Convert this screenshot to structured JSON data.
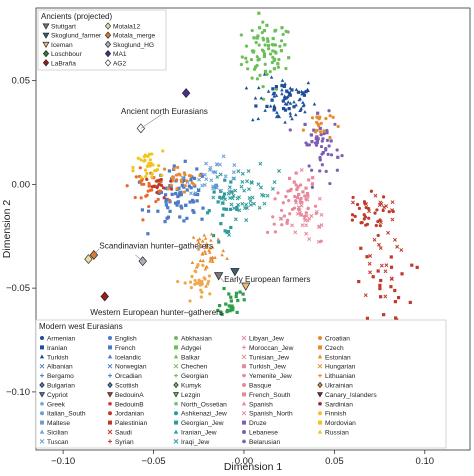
{
  "chart_data": {
    "type": "scatter",
    "xlabel": "Dimension 1",
    "ylabel": "Dimension 2",
    "xlim": [
      -0.115,
      0.125
    ],
    "ylim": [
      -0.128,
      0.085
    ],
    "xticks": [
      -0.1,
      -0.05,
      0.0,
      0.05,
      0.1
    ],
    "xtick_labels": [
      "−0.10",
      "−0.05",
      "0.00",
      "0.05",
      "0.10"
    ],
    "yticks": [
      -0.1,
      -0.05,
      0.0,
      0.05
    ],
    "ytick_labels": [
      "−0.10",
      "−0.05",
      "0.00",
      "0.05"
    ],
    "grid": false,
    "legend_ancient": {
      "title": "Ancients (projected)",
      "placement": "top-left",
      "entries": [
        {
          "name": "Stuttgart",
          "marker": "tri-down",
          "color": "#777777"
        },
        {
          "name": "Motala12",
          "marker": "diamond",
          "color": "#e8e0a0"
        },
        {
          "name": "Skoglund_farmer",
          "marker": "tri-down",
          "color": "#3a5f7a"
        },
        {
          "name": "Motala_merge",
          "marker": "diamond",
          "color": "#e07a30"
        },
        {
          "name": "Iceman",
          "marker": "tri-down",
          "color": "#e9c07a"
        },
        {
          "name": "Skoglund_HG",
          "marker": "diamond",
          "color": "#b0b0c0"
        },
        {
          "name": "Loschbour",
          "marker": "diamond",
          "color": "#2f7d3a"
        },
        {
          "name": "MA1",
          "marker": "diamond",
          "color": "#4a2f8a"
        },
        {
          "name": "LaBraña",
          "marker": "diamond",
          "color": "#9b1c1c"
        },
        {
          "name": "AG2",
          "marker": "diamond",
          "color": "#ffffff"
        }
      ]
    },
    "legend_modern": {
      "title": "Modern west Eurasians",
      "placement": "bottom-left",
      "columns": [
        [
          {
            "name": "Armenian",
            "marker": "circle",
            "color": "#1f4e9a"
          },
          {
            "name": "Iranian",
            "marker": "square",
            "color": "#1f4e9a"
          },
          {
            "name": "Turkish",
            "marker": "triangle",
            "color": "#1f4e9a"
          },
          {
            "name": "Albanian",
            "marker": "cross",
            "color": "#4a7bc4"
          },
          {
            "name": "Bergamo",
            "marker": "plus",
            "color": "#4a7bc4"
          },
          {
            "name": "Bulgarian",
            "marker": "diamond",
            "color": "#4a7bc4"
          },
          {
            "name": "Cypriot",
            "marker": "tri-down",
            "color": "#4a7bc4"
          },
          {
            "name": "Greek",
            "marker": "star",
            "color": "#6a9fd8"
          },
          {
            "name": "Italian_South",
            "marker": "circle",
            "color": "#6a9fd8"
          },
          {
            "name": "Maltese",
            "marker": "square",
            "color": "#6a9fd8"
          },
          {
            "name": "Sicilian",
            "marker": "triangle",
            "color": "#6a9fd8"
          },
          {
            "name": "Tuscan",
            "marker": "cross",
            "color": "#6a9fd8"
          }
        ],
        [
          {
            "name": "English",
            "marker": "circle",
            "color": "#4a7bc4"
          },
          {
            "name": "French",
            "marker": "square",
            "color": "#4a7bc4"
          },
          {
            "name": "Icelandic",
            "marker": "triangle",
            "color": "#4a7bc4"
          },
          {
            "name": "Norwegian",
            "marker": "cross",
            "color": "#4a7bc4"
          },
          {
            "name": "Orcadian",
            "marker": "plus",
            "color": "#4a7bc4"
          },
          {
            "name": "Scottish",
            "marker": "diamond",
            "color": "#4a7bc4"
          },
          {
            "name": "BedouinA",
            "marker": "tri-down",
            "color": "#c0392b"
          },
          {
            "name": "BedouinB",
            "marker": "star",
            "color": "#c0392b"
          },
          {
            "name": "Jordanian",
            "marker": "circle",
            "color": "#c0392b"
          },
          {
            "name": "Palestinian",
            "marker": "square",
            "color": "#c0392b"
          },
          {
            "name": "Saudi",
            "marker": "cross",
            "color": "#c0392b"
          },
          {
            "name": "Syrian",
            "marker": "plus",
            "color": "#c0392b"
          }
        ],
        [
          {
            "name": "Abkhasian",
            "marker": "circle",
            "color": "#6bbf59"
          },
          {
            "name": "Adygei",
            "marker": "square",
            "color": "#6bbf59"
          },
          {
            "name": "Balkar",
            "marker": "triangle",
            "color": "#6bbf59"
          },
          {
            "name": "Chechen",
            "marker": "cross",
            "color": "#6bbf59"
          },
          {
            "name": "Georgian",
            "marker": "plus",
            "color": "#6bbf59"
          },
          {
            "name": "Kumyk",
            "marker": "diamond",
            "color": "#6bbf59"
          },
          {
            "name": "Lezgin",
            "marker": "tri-down",
            "color": "#6bbf59"
          },
          {
            "name": "North_Ossetian",
            "marker": "star",
            "color": "#6bbf59"
          },
          {
            "name": "Ashkenazi_Jew",
            "marker": "circle",
            "color": "#2e9b9b"
          },
          {
            "name": "Georgian_Jew",
            "marker": "square",
            "color": "#2e9b9b"
          },
          {
            "name": "Iranian_Jew",
            "marker": "triangle",
            "color": "#2e9b9b"
          },
          {
            "name": "Iraqi_Jew",
            "marker": "cross",
            "color": "#2e9b9b"
          }
        ],
        [
          {
            "name": "Libyan_Jew",
            "marker": "cross",
            "color": "#e8889a"
          },
          {
            "name": "Moroccan_Jew",
            "marker": "plus",
            "color": "#e8889a"
          },
          {
            "name": "Tunisian_Jew",
            "marker": "cross",
            "color": "#e8889a"
          },
          {
            "name": "Turkish_Jew",
            "marker": "square",
            "color": "#e8889a"
          },
          {
            "name": "Yemenite_Jew",
            "marker": "star",
            "color": "#e8889a"
          },
          {
            "name": "Basque",
            "marker": "circle",
            "color": "#e8889a"
          },
          {
            "name": "French_South",
            "marker": "square",
            "color": "#e8889a"
          },
          {
            "name": "Spanish",
            "marker": "triangle",
            "color": "#e8889a"
          },
          {
            "name": "Spanish_North",
            "marker": "cross",
            "color": "#e8889a"
          },
          {
            "name": "Druze",
            "marker": "square",
            "color": "#7b5fb0"
          },
          {
            "name": "Lebanese",
            "marker": "circle",
            "color": "#7b5fb0"
          },
          {
            "name": "Belarusian",
            "marker": "star",
            "color": "#7b5fb0"
          }
        ],
        [
          {
            "name": "Croatian",
            "marker": "circle",
            "color": "#e88a2e"
          },
          {
            "name": "Czech",
            "marker": "square",
            "color": "#e88a2e"
          },
          {
            "name": "Estonian",
            "marker": "triangle",
            "color": "#e88a2e"
          },
          {
            "name": "Hungarian",
            "marker": "cross",
            "color": "#e88a2e"
          },
          {
            "name": "Lithuanian",
            "marker": "plus",
            "color": "#e88a2e"
          },
          {
            "name": "Ukrainian",
            "marker": "diamond",
            "color": "#e88a2e"
          },
          {
            "name": "Canary_Islanders",
            "marker": "tri-down",
            "color": "#9b1c1c"
          },
          {
            "name": "Sardinian",
            "marker": "star",
            "color": "#9b1c1c"
          },
          {
            "name": "Finnish",
            "marker": "circle",
            "color": "#f0c419"
          },
          {
            "name": "Mordovian",
            "marker": "square",
            "color": "#f0c419"
          },
          {
            "name": "Russian",
            "marker": "triangle",
            "color": "#f0c419"
          }
        ]
      ]
    },
    "annotations": [
      {
        "text": "Ancient north Eurasians",
        "x": -0.044,
        "y": 0.034
      },
      {
        "text": "Scandinavian hunter–gatherers",
        "x": -0.08,
        "y": -0.031
      },
      {
        "text": "Early European farmers",
        "x": -0.011,
        "y": -0.047
      },
      {
        "text": "Western European hunter–gatherers",
        "x": -0.085,
        "y": -0.063
      }
    ],
    "ancient_points": [
      {
        "name": "MA1",
        "x": -0.032,
        "y": 0.044,
        "marker": "diamond",
        "color": "#4a2f8a"
      },
      {
        "name": "AG2",
        "x": -0.057,
        "y": 0.027,
        "marker": "diamond",
        "color": "#ffffff"
      },
      {
        "name": "Motala_merge",
        "x": -0.083,
        "y": -0.034,
        "marker": "diamond",
        "color": "#e07a30"
      },
      {
        "name": "Motala12",
        "x": -0.086,
        "y": -0.036,
        "marker": "diamond",
        "color": "#e8e0a0"
      },
      {
        "name": "Skoglund_HG",
        "x": -0.056,
        "y": -0.037,
        "marker": "diamond",
        "color": "#b0b0c0"
      },
      {
        "name": "LaBraña",
        "x": -0.077,
        "y": -0.054,
        "marker": "diamond",
        "color": "#9b1c1c"
      },
      {
        "name": "Loschbour",
        "x": -0.097,
        "y": -0.069,
        "marker": "diamond",
        "color": "#2f7d3a"
      },
      {
        "name": "Skoglund_farmer",
        "x": -0.005,
        "y": -0.042,
        "marker": "tri-down",
        "color": "#3a5f7a"
      },
      {
        "name": "Stuttgart",
        "x": -0.014,
        "y": -0.044,
        "marker": "tri-down",
        "color": "#777777"
      },
      {
        "name": "Iceman",
        "x": 0.001,
        "y": -0.049,
        "marker": "tri-down",
        "color": "#e9c07a"
      }
    ],
    "clusters": [
      {
        "group": "Caucasus",
        "cx": 0.013,
        "cy": 0.062,
        "sx": 0.007,
        "sy": 0.008,
        "n": 55,
        "color": "#6bbf59",
        "marker": "circle"
      },
      {
        "group": "Caucasus2",
        "cx": 0.012,
        "cy": 0.065,
        "sx": 0.006,
        "sy": 0.007,
        "n": 25,
        "color": "#6bbf59",
        "marker": "square"
      },
      {
        "group": "Near East blue",
        "cx": 0.022,
        "cy": 0.04,
        "sx": 0.009,
        "sy": 0.006,
        "n": 55,
        "color": "#1f4e9a",
        "marker": "triangle"
      },
      {
        "group": "Near East blue sq",
        "cx": 0.024,
        "cy": 0.042,
        "sx": 0.008,
        "sy": 0.005,
        "n": 25,
        "color": "#1f4e9a",
        "marker": "square"
      },
      {
        "group": "Druze/Lebanese",
        "cx": 0.043,
        "cy": 0.017,
        "sx": 0.005,
        "sy": 0.008,
        "n": 35,
        "color": "#7b5fb0",
        "marker": "circle"
      },
      {
        "group": "Druze sq",
        "cx": 0.041,
        "cy": 0.023,
        "sx": 0.004,
        "sy": 0.005,
        "n": 15,
        "color": "#7b5fb0",
        "marker": "square"
      },
      {
        "group": "Near East orange",
        "cx": 0.041,
        "cy": 0.029,
        "sx": 0.004,
        "sy": 0.004,
        "n": 20,
        "color": "#e88a2e",
        "marker": "circle"
      },
      {
        "group": "Jewish teal",
        "cx": 0.001,
        "cy": -0.004,
        "sx": 0.009,
        "sy": 0.006,
        "n": 55,
        "color": "#2e9b9b",
        "marker": "cross"
      },
      {
        "group": "Jewish teal sq",
        "cx": -0.012,
        "cy": -0.012,
        "sx": 0.005,
        "sy": 0.006,
        "n": 25,
        "color": "#2e9b9b",
        "marker": "square"
      },
      {
        "group": "Pink",
        "cx": 0.027,
        "cy": -0.012,
        "sx": 0.007,
        "sy": 0.006,
        "n": 40,
        "color": "#e8889a",
        "marker": "circle"
      },
      {
        "group": "Pink cross",
        "cx": 0.035,
        "cy": -0.016,
        "sx": 0.007,
        "sy": 0.007,
        "n": 30,
        "color": "#e8889a",
        "marker": "cross"
      },
      {
        "group": "Pink sq",
        "cx": 0.03,
        "cy": -0.003,
        "sx": 0.005,
        "sy": 0.004,
        "n": 15,
        "color": "#e8889a",
        "marker": "square"
      },
      {
        "group": "Europe blue",
        "cx": -0.035,
        "cy": -0.006,
        "sx": 0.008,
        "sy": 0.007,
        "n": 80,
        "color": "#4a7bc4",
        "marker": "square"
      },
      {
        "group": "Europe blue2",
        "cx": -0.016,
        "cy": 0.004,
        "sx": 0.008,
        "sy": 0.004,
        "n": 30,
        "color": "#6a9fd8",
        "marker": "cross"
      },
      {
        "group": "Europe orange",
        "cx": -0.053,
        "cy": -0.001,
        "sx": 0.005,
        "sy": 0.004,
        "n": 40,
        "color": "#e86a2e",
        "marker": "circle"
      },
      {
        "group": "Europe orange2",
        "cx": -0.036,
        "cy": 0.003,
        "sx": 0.005,
        "sy": 0.003,
        "n": 25,
        "color": "#e88a2e",
        "marker": "circle"
      },
      {
        "group": "Finnish/Mordovian",
        "cx": -0.053,
        "cy": 0.008,
        "sx": 0.004,
        "sy": 0.004,
        "n": 30,
        "color": "#f0c419",
        "marker": "circle"
      },
      {
        "group": "Europe red",
        "cx": -0.047,
        "cy": -0.001,
        "sx": 0.004,
        "sy": 0.003,
        "n": 15,
        "color": "#c0392b",
        "marker": "circle"
      },
      {
        "group": "South Europe orange",
        "cx": -0.02,
        "cy": -0.032,
        "sx": 0.005,
        "sy": 0.006,
        "n": 45,
        "color": "#e88a2e",
        "marker": "triangle"
      },
      {
        "group": "South Europe orange2",
        "cx": -0.025,
        "cy": -0.048,
        "sx": 0.004,
        "sy": 0.005,
        "n": 30,
        "color": "#f0a84a",
        "marker": "circle"
      },
      {
        "group": "Sardinian",
        "cx": -0.007,
        "cy": -0.056,
        "sx": 0.003,
        "sy": 0.004,
        "n": 25,
        "color": "#2f9d4a",
        "marker": "square"
      },
      {
        "group": "Bedouin cross",
        "cx": 0.076,
        "cy": -0.025,
        "sx": 0.006,
        "sy": 0.015,
        "n": 30,
        "color": "#c0392b",
        "marker": "cross"
      },
      {
        "group": "Bedouin red",
        "cx": 0.066,
        "cy": -0.015,
        "sx": 0.007,
        "sy": 0.005,
        "n": 30,
        "color": "#c0392b",
        "marker": "circle"
      },
      {
        "group": "Yemenite/Saudi",
        "cx": 0.078,
        "cy": -0.05,
        "sx": 0.008,
        "sy": 0.01,
        "n": 25,
        "color": "#c0392b",
        "marker": "square"
      },
      {
        "group": "Bedouin tail",
        "cx": 0.095,
        "cy": -0.09,
        "sx": 0.004,
        "sy": 0.009,
        "n": 20,
        "color": "#9b1c1c",
        "marker": "square"
      }
    ]
  }
}
